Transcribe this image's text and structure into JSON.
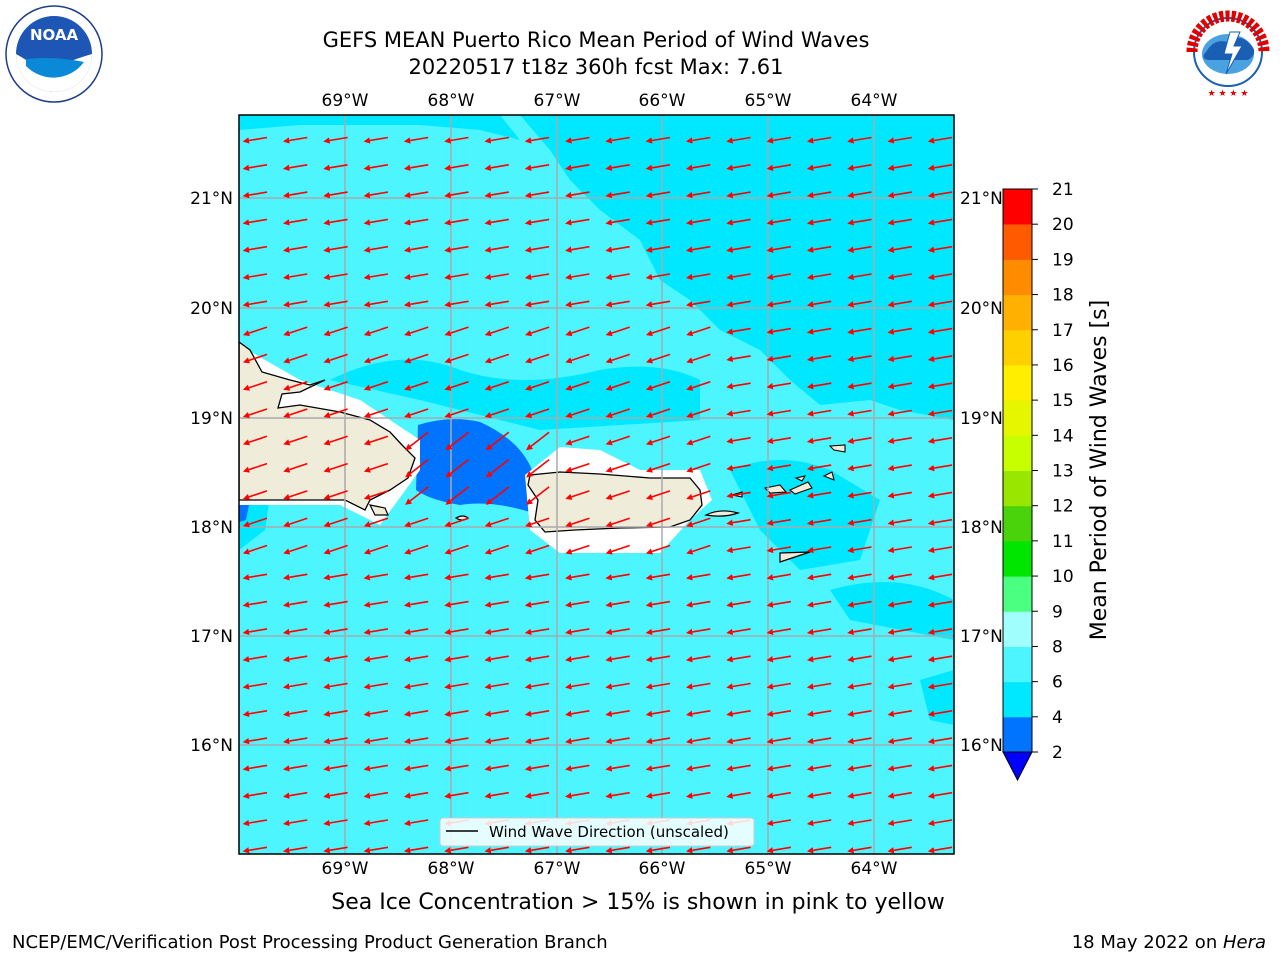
{
  "header": {
    "title_line1": "GEFS MEAN Puerto Rico Mean Period of Wind Waves",
    "title_line2": "20220517 t18z 360h fcst   Max: 7.61"
  },
  "logos": {
    "noaa_text": "NOAA",
    "noaa_ring_text": "NATIONAL OCEANIC AND ATMOSPHERIC ADMINISTRATION · U.S. DEPARTMENT OF COMMERCE",
    "nws_ring_text": "NATIONAL WEATHER SERVICE"
  },
  "map": {
    "lon_labels": [
      "69°W",
      "68°W",
      "67°W",
      "66°W",
      "65°W",
      "64°W"
    ],
    "lat_labels": [
      "21°N",
      "20°N",
      "19°N",
      "18°N",
      "17°N",
      "16°N"
    ],
    "legend_label": "Wind Wave Direction (unscaled)",
    "arrow_color": "#ff0000",
    "ocean_color": "#4cf5ff",
    "land_color": "#efecda"
  },
  "colorbar": {
    "label": "Mean Period of Wind Waves [s]",
    "ticks": [
      "2",
      "4",
      "6",
      "8",
      "9",
      "10",
      "11",
      "12",
      "13",
      "14",
      "15",
      "16",
      "17",
      "18",
      "19",
      "20",
      "21"
    ],
    "colors": [
      "#0073ff",
      "#00e8ff",
      "#4cf5ff",
      "#a0fffc",
      "#4bff80",
      "#00e600",
      "#4ad20a",
      "#99e600",
      "#c8ff00",
      "#e6f500",
      "#ffee00",
      "#ffd000",
      "#ffb000",
      "#ff8c00",
      "#ff5a00",
      "#ff2d00",
      "#ff0000"
    ],
    "extend_color": "#0000ff"
  },
  "notes": {
    "sea_ice": "Sea Ice Concentration > 15% is shown in pink to yellow",
    "branch": "NCEP/EMC/Verification Post Processing Product Generation Branch",
    "date": "18 May 2022 on ",
    "host": "Hera"
  }
}
